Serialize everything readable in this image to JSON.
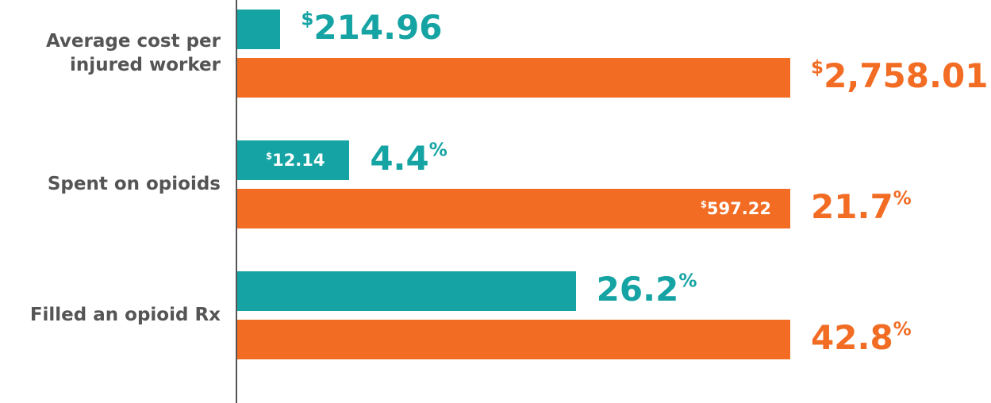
{
  "chart_data": {
    "type": "bar",
    "orientation": "horizontal",
    "categories": [
      "Average cost per injured worker",
      "Spent on opioids",
      "Filled an opioid Rx"
    ],
    "series": [
      {
        "color": "#16a3a3",
        "values": [
          214.96,
          4.4,
          26.2
        ],
        "value_labels": [
          "$214.96",
          "4.4%",
          "26.2%"
        ],
        "inner_values": [
          null,
          12.14,
          null
        ],
        "inner_value_labels": [
          null,
          "$12.14",
          null
        ]
      },
      {
        "color": "#f26c23",
        "values": [
          2758.01,
          21.7,
          42.8
        ],
        "value_labels": [
          "$2,758.01",
          "21.7%",
          "42.8%"
        ],
        "inner_values": [
          null,
          597.22,
          null
        ],
        "inner_value_labels": [
          null,
          "$597.22",
          null
        ]
      }
    ]
  }
}
